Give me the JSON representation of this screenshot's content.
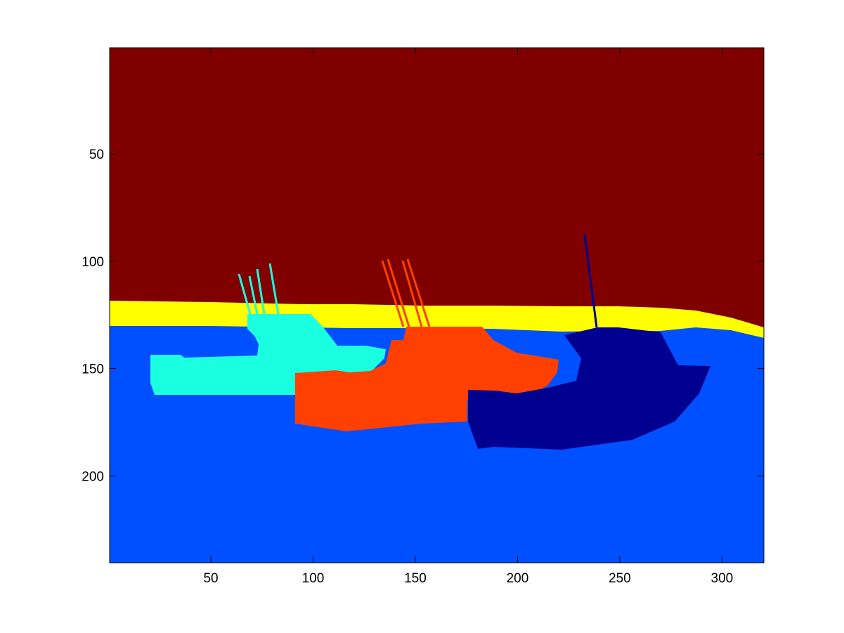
{
  "figure": {
    "background": "#ffffff",
    "axes_color": "#000000"
  },
  "image": {
    "colormap": "jet",
    "colors": {
      "sky": "#800000",
      "horizon": "#ffff00",
      "water": "#0050ff",
      "boat_left": "#1affe0",
      "boat_middle": "#ff4000",
      "boat_right": "#000090"
    }
  },
  "axes": {
    "x_range": [
      0.5,
      320.5
    ],
    "y_range": [
      0.5,
      240.5
    ],
    "y_direction": "down",
    "x_ticks": [
      {
        "value": 50,
        "label": "50"
      },
      {
        "value": 100,
        "label": "100"
      },
      {
        "value": 150,
        "label": "150"
      },
      {
        "value": 200,
        "label": "200"
      },
      {
        "value": 250,
        "label": "250"
      },
      {
        "value": 300,
        "label": "300"
      }
    ],
    "y_ticks": [
      {
        "value": 50,
        "label": "50"
      },
      {
        "value": 100,
        "label": "100"
      },
      {
        "value": 150,
        "label": "150"
      },
      {
        "value": 200,
        "label": "200"
      }
    ]
  }
}
